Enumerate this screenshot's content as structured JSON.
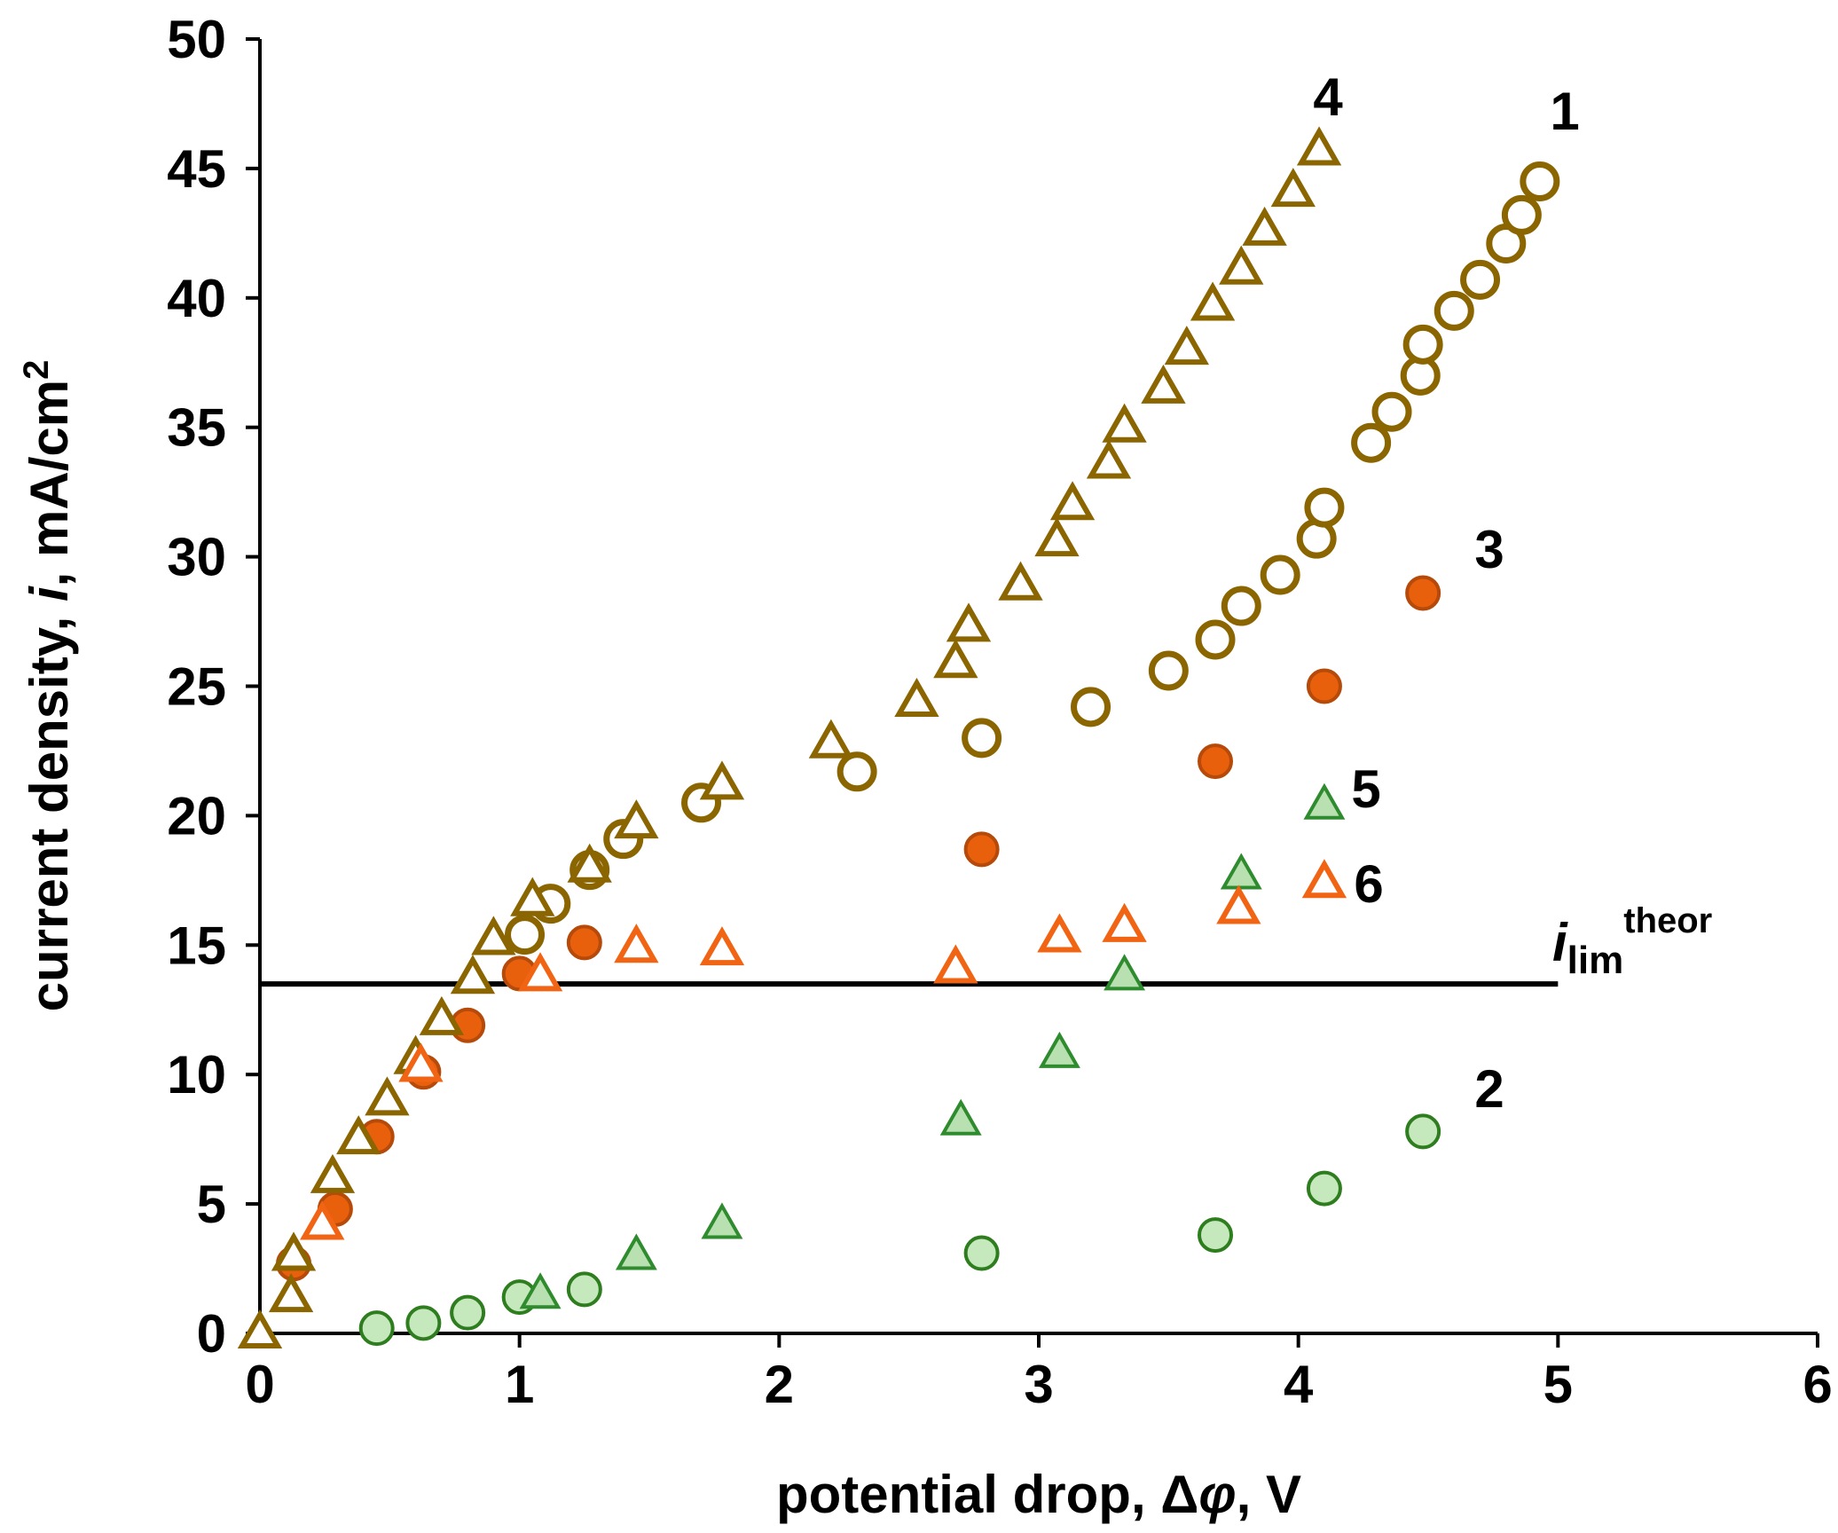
{
  "chart_data": {
    "type": "scatter",
    "title": "",
    "xlabel": "potential drop, Δφ, V",
    "ylabel": "current density, i, mA/cm2",
    "xlabel_parts": {
      "pre": "potential drop, ",
      "sym": "Δ",
      "var": "φ",
      "post": ", V"
    },
    "ylabel_parts": {
      "pre": "current density, ",
      "var": "i",
      "post": ", mA/cm",
      "sup": "2"
    },
    "xlim": [
      0,
      6
    ],
    "ylim": [
      0,
      50
    ],
    "xticks": [
      "0",
      "1",
      "2",
      "3",
      "4",
      "5",
      "6"
    ],
    "yticks": [
      "0",
      "5",
      "10",
      "15",
      "20",
      "25",
      "30",
      "35",
      "40",
      "45",
      "50"
    ],
    "grid": false,
    "legend": "none",
    "reference_line": {
      "y": 13.5,
      "x_range": [
        0,
        5
      ],
      "label_main": "i",
      "label_sub": "lim",
      "label_sup": "theor",
      "color": "#000000"
    },
    "series": [
      {
        "name": "1",
        "marker": "circle-open",
        "color": "#8a6500",
        "fill": "#ffffff",
        "label": "1",
        "points": [
          [
            1.02,
            15.4
          ],
          [
            1.12,
            16.6
          ],
          [
            1.27,
            17.9
          ],
          [
            1.4,
            19.1
          ],
          [
            1.7,
            20.5
          ],
          [
            2.3,
            21.7
          ],
          [
            2.78,
            23.0
          ],
          [
            3.2,
            24.2
          ],
          [
            3.5,
            25.6
          ],
          [
            3.68,
            26.8
          ],
          [
            3.78,
            28.1
          ],
          [
            3.93,
            29.3
          ],
          [
            4.07,
            30.7
          ],
          [
            4.1,
            31.9
          ],
          [
            4.28,
            34.4
          ],
          [
            4.36,
            35.6
          ],
          [
            4.47,
            37.0
          ],
          [
            4.48,
            38.2
          ],
          [
            4.6,
            39.5
          ],
          [
            4.7,
            40.7
          ],
          [
            4.8,
            42.1
          ],
          [
            4.86,
            43.2
          ],
          [
            4.93,
            44.5
          ]
        ]
      },
      {
        "name": "2",
        "marker": "circle-filled",
        "color": "#2e7d1e",
        "fill": "#c5e8bd",
        "label": "2",
        "points": [
          [
            0.45,
            0.2
          ],
          [
            0.63,
            0.4
          ],
          [
            0.8,
            0.8
          ],
          [
            1.0,
            1.4
          ],
          [
            1.25,
            1.7
          ],
          [
            2.78,
            3.1
          ],
          [
            3.68,
            3.8
          ],
          [
            4.1,
            5.6
          ],
          [
            4.48,
            7.8
          ]
        ]
      },
      {
        "name": "3",
        "marker": "circle-filled",
        "color": "#b54a0a",
        "fill": "#e8600c",
        "label": "3",
        "points": [
          [
            0.13,
            2.7
          ],
          [
            0.29,
            4.8
          ],
          [
            0.45,
            7.6
          ],
          [
            0.63,
            10.1
          ],
          [
            0.8,
            11.9
          ],
          [
            1.0,
            13.9
          ],
          [
            1.25,
            15.1
          ],
          [
            2.78,
            18.7
          ],
          [
            3.68,
            22.1
          ],
          [
            4.1,
            25.0
          ],
          [
            4.48,
            28.6
          ]
        ]
      },
      {
        "name": "4",
        "marker": "triangle-open",
        "color": "#8a6500",
        "fill": "#ffffff",
        "label": "4",
        "points": [
          [
            0.0,
            0.0
          ],
          [
            0.12,
            1.4
          ],
          [
            0.13,
            3.0
          ],
          [
            0.28,
            6.0
          ],
          [
            0.38,
            7.5
          ],
          [
            0.49,
            9.0
          ],
          [
            0.6,
            10.6
          ],
          [
            0.7,
            12.1
          ],
          [
            0.82,
            13.7
          ],
          [
            0.9,
            15.2
          ],
          [
            1.05,
            16.7
          ],
          [
            1.27,
            18.0
          ],
          [
            1.45,
            19.7
          ],
          [
            1.78,
            21.2
          ],
          [
            2.2,
            22.8
          ],
          [
            2.53,
            24.4
          ],
          [
            2.68,
            25.9
          ],
          [
            2.73,
            27.3
          ],
          [
            2.93,
            28.9
          ],
          [
            3.07,
            30.6
          ],
          [
            3.13,
            32.0
          ],
          [
            3.27,
            33.6
          ],
          [
            3.33,
            35.0
          ],
          [
            3.48,
            36.5
          ],
          [
            3.57,
            38.0
          ],
          [
            3.67,
            39.7
          ],
          [
            3.78,
            41.1
          ],
          [
            3.87,
            42.6
          ],
          [
            3.98,
            44.1
          ],
          [
            4.08,
            45.7
          ]
        ]
      },
      {
        "name": "5",
        "marker": "triangle-filled",
        "color": "#2e8b2e",
        "fill": "#b8e0b0",
        "label": "5",
        "points": [
          [
            1.08,
            1.5
          ],
          [
            1.45,
            3.0
          ],
          [
            1.78,
            4.2
          ],
          [
            2.7,
            8.2
          ],
          [
            3.08,
            10.8
          ],
          [
            3.33,
            13.8
          ],
          [
            3.78,
            17.7
          ],
          [
            4.1,
            20.4
          ]
        ]
      },
      {
        "name": "6",
        "marker": "triangle-open",
        "color": "#f06414",
        "fill": "#ffffff",
        "label": "6",
        "points": [
          [
            0.24,
            4.2
          ],
          [
            0.62,
            10.3
          ],
          [
            1.08,
            13.8
          ],
          [
            1.45,
            14.9
          ],
          [
            1.78,
            14.8
          ],
          [
            2.68,
            14.1
          ],
          [
            3.08,
            15.3
          ],
          [
            3.33,
            15.7
          ],
          [
            3.77,
            16.4
          ],
          [
            4.1,
            17.4
          ]
        ]
      }
    ],
    "annotations": [
      "4",
      "1",
      "3",
      "5",
      "6",
      "2"
    ]
  }
}
